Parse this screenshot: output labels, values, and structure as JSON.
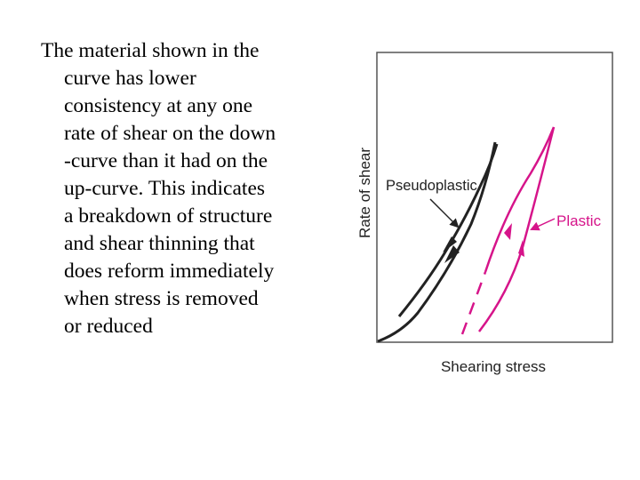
{
  "text_lines": [
    "The material shown in the",
    "curve has lower",
    "consistency at any one",
    "rate of shear on the down",
    "-curve than it had on the",
    "up-curve. This indicates",
    "a breakdown of structure",
    "and shear thinning that",
    "does reform immediately",
    "when stress is removed",
    "or reduced"
  ],
  "diagram": {
    "y_axis_label": "Rate of shear",
    "x_axis_label": "Shearing stress",
    "pseudoplastic_label": "Pseudoplastic",
    "plastic_label": "Plastic",
    "colors": {
      "pseudoplastic": "#222222",
      "plastic": "#d6148a",
      "frame": "#555555"
    }
  }
}
